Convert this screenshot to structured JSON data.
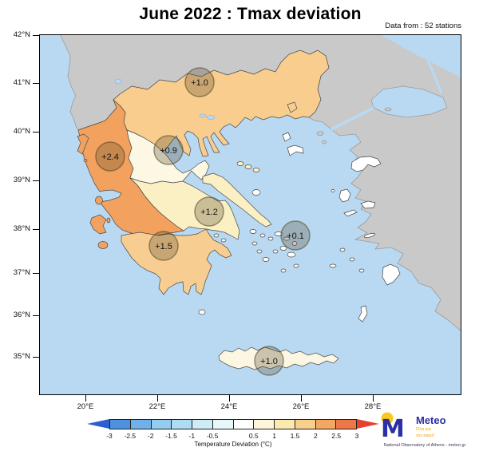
{
  "title": "June 2022 : Tmax deviation",
  "data_source": "Data from : 52 stations",
  "axes": {
    "lat": [
      "42°N",
      "41°N",
      "40°N",
      "39°N",
      "38°N",
      "37°N",
      "36°N",
      "35°N"
    ],
    "lon": [
      "20°E",
      "22°E",
      "24°E",
      "26°E",
      "28°E"
    ]
  },
  "stations": [
    {
      "region": "macedonia-thrace",
      "value": "+1.0"
    },
    {
      "region": "epirus",
      "value": "+2.4"
    },
    {
      "region": "thessaly",
      "value": "+0.9"
    },
    {
      "region": "central-greece",
      "value": "+1.2"
    },
    {
      "region": "aegean-islands",
      "value": "+0.1"
    },
    {
      "region": "peloponnese",
      "value": "+1.5"
    },
    {
      "region": "crete",
      "value": "+1.0"
    }
  ],
  "colorbar": {
    "caption": "Temperature Deviation (°C)",
    "tick_labels": [
      "-3",
      "-2.5",
      "-2",
      "-1.5",
      "-1",
      "-0.5",
      "0.5",
      "1",
      "1.5",
      "2",
      "2.5",
      "3"
    ],
    "segment_colors": [
      "#4d92de",
      "#6fb1e8",
      "#94cdee",
      "#aedcf2",
      "#cdecf6",
      "#e7f7fa",
      "#ffffff",
      "#fdf6da",
      "#fbe9af",
      "#f8d08c",
      "#f3a862",
      "#ed7747"
    ],
    "left_arrow_color": "#2b5fce",
    "right_arrow_color": "#e8402e"
  },
  "map_colors": {
    "sea": "#b9d9f2",
    "foreign": "#c9c9c9",
    "north": "#f9cd8e",
    "epirus": "#f2a25e",
    "thessaly": "#fdf8e3",
    "central": "#fbf0c4",
    "pelop": "#f8cd92",
    "crete": "#fcf7e2",
    "island": "#ffffff"
  },
  "logo": {
    "brand": "Meteo",
    "tagline_line1": "Όλα για",
    "tagline_line2": "τον καιρό",
    "subtitle": "National Observatory of Athens - meteo.gr"
  }
}
